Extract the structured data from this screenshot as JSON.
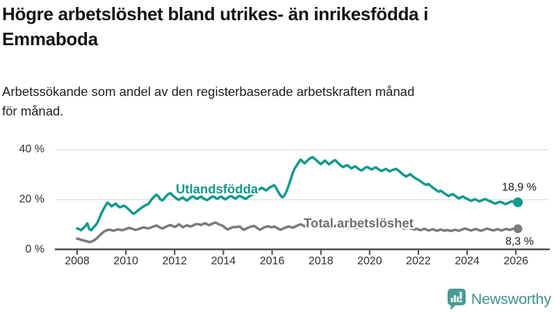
{
  "title_lines": [
    "Högre arbetslöshet bland utrikes- än inrikesfödda i",
    "Emmaboda"
  ],
  "subtitle_lines": [
    "Arbetssökande som andel av den registerbaserade arbetskraften månad",
    "för månad."
  ],
  "colors": {
    "foreign_born_line": "#129a8c",
    "total_line": "#7b7b7b",
    "total_label_text": "#6f6f6f",
    "gridline": "#dcdcdc",
    "axis": "#4a4a4a",
    "tick_text": "#303030",
    "end_label_text": "#1a1a1a",
    "brand_icon": "#4a9a95",
    "brand_text": "#3f918c",
    "background": "#ffffff"
  },
  "chart_data": {
    "type": "line",
    "title": "Högre arbetslöshet bland utrikes- än inrikesfödda i Emmaboda",
    "subtitle": "Arbetssökande som andel av den registerbaserade arbetskraften månad för månad.",
    "x_unit": "month",
    "x_range": [
      "2008-01",
      "2026-02"
    ],
    "x_tick_labels": [
      "2008",
      "2010",
      "2012",
      "2014",
      "2016",
      "2018",
      "2020",
      "2022",
      "2024",
      "2026"
    ],
    "y_tick_labels": [
      "40 %",
      "20 %",
      "0 %"
    ],
    "y_tick_values": [
      40,
      20,
      0
    ],
    "ylim": [
      0,
      45
    ],
    "grid": "horizontal",
    "legend_position": "inline-labels",
    "series": [
      {
        "name": "Utlandsfödda",
        "color": "#129a8c",
        "end_label": "18,9 %",
        "end_value": 18.9,
        "values": [
          8.4,
          8.1,
          7.7,
          8.5,
          9.3,
          10.4,
          8.2,
          7.7,
          8.8,
          9.6,
          10.8,
          12.6,
          14.6,
          16.2,
          17.6,
          18.8,
          18.1,
          17.3,
          17.9,
          18.4,
          17.5,
          16.9,
          17.2,
          17.6,
          17.1,
          16.4,
          15.6,
          14.7,
          14.3,
          15.0,
          15.7,
          16.3,
          16.9,
          17.4,
          17.9,
          18.2,
          19.3,
          20.4,
          21.3,
          22.0,
          21.3,
          20.1,
          19.7,
          20.6,
          21.5,
          22.3,
          22.6,
          21.7,
          21.0,
          20.4,
          19.9,
          20.4,
          20.9,
          20.2,
          19.6,
          20.2,
          20.9,
          21.3,
          20.8,
          20.3,
          20.8,
          21.2,
          20.6,
          20.1,
          19.8,
          20.4,
          21.0,
          21.3,
          20.8,
          20.3,
          20.9,
          21.2,
          20.6,
          20.1,
          20.7,
          21.2,
          21.4,
          20.8,
          20.4,
          21.0,
          21.5,
          21.1,
          20.7,
          20.3,
          20.9,
          21.4,
          21.9,
          22.5,
          23.1,
          23.7,
          24.3,
          24.8,
          24.2,
          23.7,
          24.3,
          25.0,
          25.4,
          25.8,
          24.7,
          23.1,
          21.8,
          20.9,
          21.6,
          23.2,
          25.3,
          27.8,
          30.4,
          32.4,
          33.6,
          34.9,
          36.1,
          35.3,
          34.6,
          35.4,
          36.2,
          36.8,
          37.1,
          36.4,
          35.7,
          34.9,
          34.3,
          35.0,
          35.7,
          34.9,
          34.2,
          34.8,
          35.5,
          35.9,
          35.1,
          34.3,
          33.6,
          33.1,
          33.5,
          33.9,
          33.2,
          32.6,
          33.0,
          33.4,
          32.7,
          32.1,
          31.7,
          32.3,
          32.9,
          33.1,
          32.6,
          32.1,
          32.6,
          33.0,
          32.4,
          31.9,
          31.5,
          32.0,
          32.4,
          31.8,
          31.4,
          31.8,
          32.1,
          32.4,
          31.8,
          31.1,
          30.4,
          29.8,
          29.3,
          29.8,
          30.2,
          29.5,
          28.9,
          28.4,
          28.0,
          27.4,
          26.8,
          26.3,
          25.9,
          26.3,
          25.6,
          24.9,
          24.3,
          23.7,
          23.2,
          23.6,
          23.0,
          22.4,
          21.9,
          21.4,
          21.9,
          22.2,
          21.6,
          21.0,
          20.5,
          20.9,
          21.3,
          20.7,
          20.3,
          19.9,
          19.5,
          19.9,
          20.2,
          19.7,
          19.3,
          19.6,
          20.0,
          20.2,
          19.8,
          19.4,
          19.1,
          18.7,
          18.4,
          18.8,
          19.1,
          18.9,
          18.5,
          18.2,
          18.6,
          19.0,
          19.3,
          19.1,
          19.0,
          18.9
        ]
      },
      {
        "name": "Total arbetslöshet",
        "color": "#7b7b7b",
        "end_label": "8,3 %",
        "end_value": 8.3,
        "values": [
          4.3,
          4.1,
          3.8,
          3.6,
          3.4,
          3.2,
          2.9,
          3.1,
          3.5,
          4.0,
          4.7,
          5.5,
          6.3,
          7.0,
          7.5,
          7.8,
          7.9,
          7.7,
          7.5,
          7.8,
          8.0,
          7.9,
          7.7,
          7.9,
          8.2,
          8.5,
          8.6,
          8.3,
          8.0,
          7.8,
          8.1,
          8.4,
          8.7,
          8.8,
          8.6,
          8.4,
          8.7,
          9.0,
          9.3,
          9.6,
          9.2,
          8.7,
          8.4,
          8.8,
          9.2,
          9.5,
          9.8,
          9.4,
          9.0,
          9.4,
          10.1,
          9.6,
          8.9,
          9.3,
          9.7,
          9.4,
          9.2,
          9.6,
          10.0,
          10.2,
          10.0,
          9.8,
          10.2,
          10.5,
          10.1,
          9.7,
          10.1,
          10.5,
          10.8,
          10.4,
          10.0,
          9.7,
          9.3,
          8.6,
          8.0,
          8.3,
          8.7,
          9.0,
          8.9,
          9.1,
          9.2,
          8.5,
          7.9,
          8.2,
          8.7,
          9.0,
          9.2,
          9.4,
          9.0,
          8.4,
          7.9,
          8.3,
          8.8,
          9.1,
          9.3,
          9.0,
          8.9,
          9.2,
          8.8,
          8.3,
          7.9,
          8.2,
          8.6,
          8.9,
          9.2,
          9.0,
          8.7,
          9.0,
          9.4,
          9.8,
          10.1,
          9.7,
          9.3,
          9.0,
          9.3,
          9.7,
          10.0,
          9.6,
          9.2,
          9.5,
          9.1,
          8.8,
          9.2,
          9.5,
          9.1,
          8.7,
          9.0,
          9.4,
          9.7,
          9.3,
          8.9,
          9.2,
          8.9,
          8.6,
          9.0,
          9.3,
          8.9,
          8.5,
          8.8,
          9.1,
          9.4,
          9.1,
          8.8,
          9.1,
          9.5,
          9.9,
          10.4,
          10.7,
          10.3,
          9.9,
          10.2,
          10.5,
          10.1,
          9.7,
          9.4,
          9.7,
          9.3,
          9.0,
          9.4,
          9.1,
          8.7,
          8.4,
          8.7,
          9.0,
          8.6,
          8.3,
          8.0,
          8.3,
          8.0,
          7.7,
          8.0,
          8.3,
          7.9,
          7.6,
          7.8,
          8.1,
          7.8,
          7.5,
          7.7,
          8.0,
          7.7,
          7.5,
          7.8,
          7.6,
          7.4,
          7.6,
          7.9,
          7.7,
          7.5,
          7.8,
          8.1,
          8.4,
          8.1,
          7.8,
          7.6,
          7.9,
          8.2,
          8.0,
          7.7,
          7.5,
          7.8,
          8.1,
          8.3,
          8.0,
          7.8,
          7.6,
          7.9,
          8.1,
          7.8,
          7.6,
          7.9,
          8.2,
          8.0,
          7.8,
          8.1,
          8.3,
          8.2,
          8.3
        ]
      }
    ]
  },
  "branding": {
    "logo_text": "Newsworthy",
    "logo_icon": "bar-chart-speech-bubble-icon"
  }
}
